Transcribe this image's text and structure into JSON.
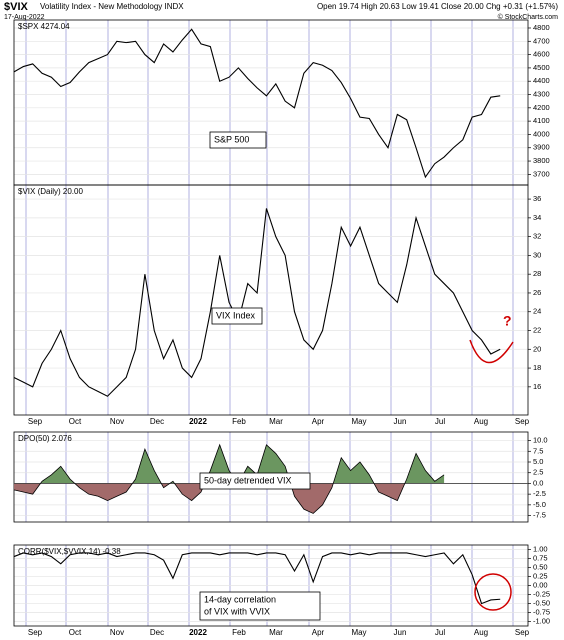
{
  "header": {
    "symbol": "$VIX",
    "name": "Volatility Index - New Methodology INDX",
    "date": "17-Aug-2022",
    "quote": "Open 19.74 High 20.63 Low 19.41 Close 20.00 Chg +0.31 (+1.57%)",
    "source": "© StockCharts.com"
  },
  "months": [
    "Sep",
    "Oct",
    "Nov",
    "Dec",
    "2022",
    "Feb",
    "Mar",
    "Apr",
    "May",
    "Jun",
    "Jul",
    "Aug",
    "Sep"
  ],
  "chart_data": [
    {
      "type": "line",
      "label": "$SPX 4274.04",
      "annotation": [
        "S&P 500"
      ],
      "color": "#000000",
      "values": [
        4470,
        4510,
        4530,
        4460,
        4430,
        4360,
        4390,
        4470,
        4540,
        4570,
        4600,
        4700,
        4690,
        4700,
        4600,
        4540,
        4680,
        4620,
        4710,
        4790,
        4680,
        4660,
        4400,
        4430,
        4500,
        4420,
        4350,
        4290,
        4380,
        4250,
        4200,
        4460,
        4540,
        4520,
        4480,
        4390,
        4270,
        4130,
        4120,
        4000,
        3900,
        4150,
        4110,
        3900,
        3680,
        3780,
        3830,
        3900,
        3960,
        4130,
        4150,
        4280,
        4290
      ],
      "ylim": [
        3620,
        4860
      ],
      "yticks": [
        3700,
        3800,
        3900,
        4000,
        4100,
        4200,
        4300,
        4400,
        4500,
        4600,
        4700,
        4800
      ]
    },
    {
      "type": "line",
      "label": "$VIX (Daily) 20.00",
      "annotation": [
        "VIX Index"
      ],
      "note": "?",
      "color": "#000000",
      "values": [
        17,
        16.5,
        16,
        18.5,
        20,
        22,
        19,
        17,
        16,
        15.5,
        15,
        16,
        17,
        20,
        28,
        22,
        19,
        21,
        18,
        17,
        19,
        24,
        30,
        25,
        23,
        27,
        26,
        35,
        32,
        30,
        24,
        21,
        20,
        22,
        27,
        33,
        31,
        33,
        30,
        27,
        26,
        25,
        29,
        34,
        31,
        28,
        27,
        26,
        24,
        22,
        21,
        19.5,
        20
      ],
      "ylim": [
        13,
        37.5
      ],
      "yticks": [
        16,
        18,
        20,
        22,
        24,
        26,
        28,
        30,
        32,
        34,
        36
      ]
    },
    {
      "type": "area",
      "label": "DPO(50) 2.076",
      "annotation": [
        "50-day detrended VIX"
      ],
      "color": "#000000",
      "positive_color": "#6b9660",
      "negative_color": "#a26a6a",
      "values": [
        -1.5,
        -2,
        -2.5,
        0.5,
        2,
        4,
        1,
        -1,
        -2.5,
        -3,
        -4,
        -3,
        -2,
        1,
        8,
        3,
        -1,
        0.5,
        -2.5,
        -4,
        -2,
        3,
        9,
        3,
        0,
        4,
        2,
        9,
        7,
        4,
        -3,
        -6,
        -7,
        -5,
        -1,
        6,
        3,
        5,
        2,
        -2,
        -3,
        -4,
        1,
        7,
        3,
        0.5,
        2,
        null,
        null,
        null,
        null,
        null,
        null
      ],
      "ylim": [
        -9,
        12
      ],
      "yticks": [
        {
          "value": -7.5,
          "label": "-7.5"
        },
        {
          "value": -5,
          "label": "-5.0"
        },
        {
          "value": -2.5,
          "label": "-2.5"
        },
        {
          "value": 0,
          "label": "0.0"
        },
        {
          "value": 2.5,
          "label": "2.5"
        },
        {
          "value": 5,
          "label": "5.0"
        },
        {
          "value": 7.5,
          "label": "7.5"
        },
        {
          "value": 10,
          "label": "10.0"
        }
      ]
    },
    {
      "type": "line",
      "label": "CORR($VIX,$VVIX,14) -0.38",
      "annotation": [
        "14-day correlation",
        "of VIX with VVIX"
      ],
      "color": "#000000",
      "values": [
        0.8,
        0.9,
        0.85,
        0.9,
        0.8,
        0.6,
        0.85,
        0.9,
        0.9,
        0.85,
        0.9,
        0.8,
        0.85,
        0.9,
        0.9,
        0.85,
        0.7,
        0.2,
        0.85,
        0.9,
        0.9,
        0.9,
        0.85,
        0.9,
        0.9,
        0.9,
        0.85,
        0.9,
        0.9,
        0.85,
        0.4,
        0.85,
        0.1,
        0.8,
        0.9,
        0.9,
        0.85,
        0.9,
        0.85,
        0.9,
        0.9,
        0.9,
        0.9,
        0.85,
        0.8,
        0.85,
        0.9,
        0.6,
        0.85,
        0.3,
        -0.5,
        -0.4,
        -0.38
      ],
      "ylim": [
        -1.12,
        1.12
      ],
      "yticks": [
        {
          "value": -1,
          "label": "-1.00"
        },
        {
          "value": -0.75,
          "label": "-0.75"
        },
        {
          "value": -0.5,
          "label": "-0.50"
        },
        {
          "value": -0.25,
          "label": "-0.25"
        },
        {
          "value": 0,
          "label": "0.00"
        },
        {
          "value": 0.25,
          "label": "0.25"
        },
        {
          "value": 0.5,
          "label": "0.50"
        },
        {
          "value": 0.75,
          "label": "0.75"
        },
        {
          "value": 1,
          "label": "1.00"
        }
      ]
    }
  ]
}
